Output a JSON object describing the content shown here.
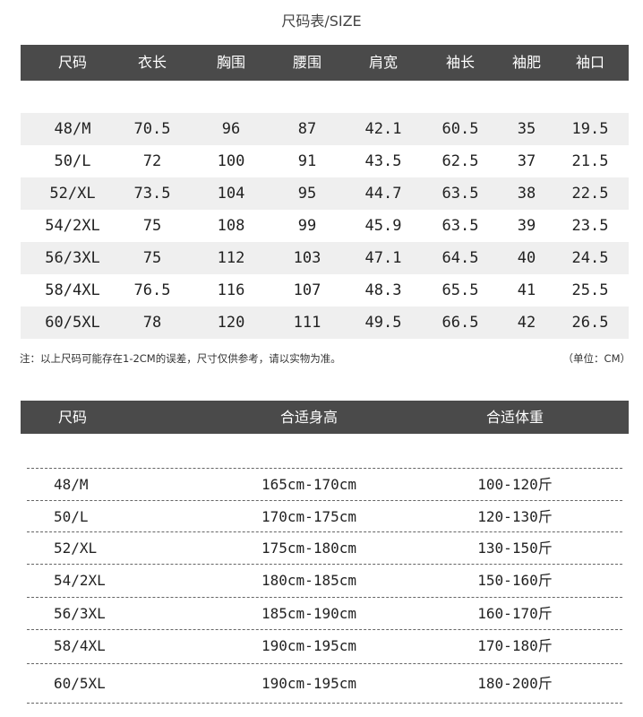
{
  "title": "尺码表/SIZE",
  "measure_table": {
    "headers": [
      "尺码",
      "衣长",
      "胸围",
      "腰围",
      "肩宽",
      "袖长",
      "袖肥",
      "袖口"
    ],
    "rows": [
      [
        "48/M",
        "70.5",
        "96",
        "87",
        "42.1",
        "60.5",
        "35",
        "19.5"
      ],
      [
        "50/L",
        "72",
        "100",
        "91",
        "43.5",
        "62.5",
        "37",
        "21.5"
      ],
      [
        "52/XL",
        "73.5",
        "104",
        "95",
        "44.7",
        "63.5",
        "38",
        "22.5"
      ],
      [
        "54/2XL",
        "75",
        "108",
        "99",
        "45.9",
        "63.5",
        "39",
        "23.5"
      ],
      [
        "56/3XL",
        "75",
        "112",
        "103",
        "47.1",
        "64.5",
        "40",
        "24.5"
      ],
      [
        "58/4XL",
        "76.5",
        "116",
        "107",
        "48.3",
        "65.5",
        "41",
        "25.5"
      ],
      [
        "60/5XL",
        "78",
        "120",
        "111",
        "49.5",
        "66.5",
        "42",
        "26.5"
      ]
    ]
  },
  "note": "注：以上尺码可能存在1-2CM的误差，尺寸仅供参考，请以实物为准。",
  "unit": "（单位：CM）",
  "fit_table": {
    "headers": [
      "尺码",
      "合适身高",
      "合适体重"
    ],
    "rows": [
      [
        "48/M",
        "165cm-170cm",
        "100-120斤"
      ],
      [
        "50/L",
        "170cm-175cm",
        "120-130斤"
      ],
      [
        "52/XL",
        "175cm-180cm",
        "130-150斤"
      ],
      [
        "54/2XL",
        "180cm-185cm",
        "150-160斤"
      ],
      [
        "56/3XL",
        "185cm-190cm",
        "160-170斤"
      ],
      [
        "58/4XL",
        "190cm-195cm",
        "170-180斤"
      ],
      [
        "60/5XL",
        "190cm-195cm",
        "180-200斤"
      ]
    ]
  },
  "colors": {
    "header_bg": "#4a4a4a",
    "stripe": "#efefef"
  }
}
